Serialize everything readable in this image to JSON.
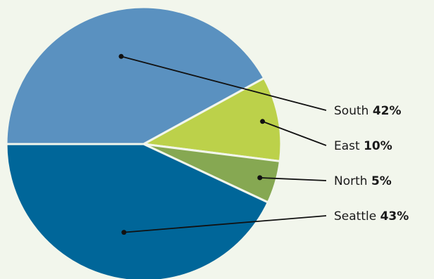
{
  "chart_data": {
    "type": "pie",
    "slices": [
      {
        "label": "South",
        "value": 42,
        "display": "42%",
        "color": "#5a91c0"
      },
      {
        "label": "East",
        "value": 10,
        "display": "10%",
        "color": "#bcd14a"
      },
      {
        "label": "North",
        "value": 5,
        "display": "5%",
        "color": "#86a852"
      },
      {
        "label": "Seattle",
        "value": 43,
        "display": "43%",
        "color": "#006699"
      }
    ],
    "legend": "right"
  }
}
